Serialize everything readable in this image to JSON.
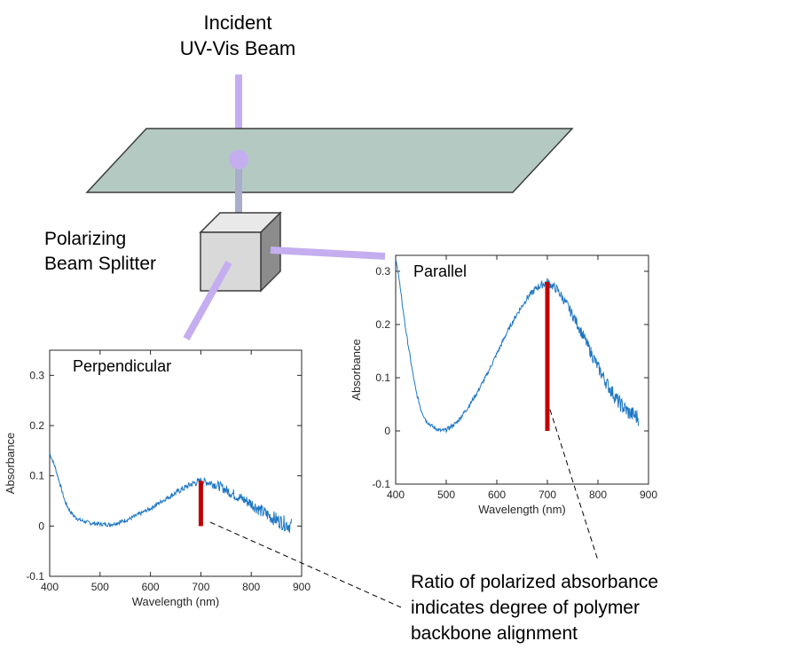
{
  "diagram": {
    "beam_label_line1": "Incident",
    "beam_label_line2": "UV-Vis Beam",
    "splitter_label_line1": "Polarizing",
    "splitter_label_line2": "Beam Splitter",
    "note_line1": "Ratio of polarized absorbance",
    "note_line2": "indicates degree of polymer",
    "note_line3": "backbone alignment",
    "colors": {
      "beam": "#c4aef0",
      "sample": "#b5c9c3",
      "cube_front": "#d9d9d9",
      "cube_top": "#e8e8e8",
      "cube_side": "#8c8c8c",
      "spectrum": "#1f77c4",
      "marker": "#c00000"
    }
  },
  "chart_data": [
    {
      "type": "line",
      "title": "Perpendicular",
      "xlabel": "Wavelength (nm)",
      "ylabel": "Absorbance",
      "xlim": [
        400,
        900
      ],
      "ylim": [
        -0.1,
        0.35
      ],
      "xticks": [
        "400",
        "500",
        "600",
        "700",
        "800",
        "900"
      ],
      "yticks": [
        "-0.1",
        "0",
        "0.1",
        "0.2",
        "0.3"
      ],
      "x": [
        400,
        410,
        420,
        430,
        440,
        450,
        460,
        480,
        500,
        520,
        540,
        560,
        580,
        600,
        620,
        640,
        660,
        680,
        700,
        720,
        740,
        760,
        780,
        800,
        820,
        840,
        860,
        880
      ],
      "y": [
        0.145,
        0.12,
        0.085,
        0.05,
        0.03,
        0.018,
        0.012,
        0.006,
        0.004,
        0.003,
        0.008,
        0.015,
        0.025,
        0.035,
        0.048,
        0.06,
        0.072,
        0.083,
        0.09,
        0.086,
        0.078,
        0.066,
        0.055,
        0.045,
        0.03,
        0.018,
        0.008,
        0.0
      ],
      "marker": {
        "x": 700,
        "y_from": 0.0,
        "y_to": 0.09
      },
      "grid": false
    },
    {
      "type": "line",
      "title": "Parallel",
      "xlabel": "Wavelength (nm)",
      "ylabel": "Absorbance",
      "xlim": [
        400,
        900
      ],
      "ylim": [
        -0.1,
        0.33
      ],
      "xticks": [
        "400",
        "500",
        "600",
        "700",
        "800",
        "900"
      ],
      "yticks": [
        "-0.1",
        "0",
        "0.1",
        "0.2",
        "0.3"
      ],
      "x": [
        400,
        405,
        410,
        420,
        430,
        440,
        450,
        460,
        470,
        480,
        490,
        500,
        520,
        540,
        560,
        580,
        600,
        620,
        640,
        660,
        680,
        700,
        720,
        740,
        760,
        780,
        800,
        820,
        840,
        860,
        880
      ],
      "y": [
        0.32,
        0.3,
        0.26,
        0.19,
        0.13,
        0.075,
        0.04,
        0.02,
        0.01,
        0.004,
        0.0,
        0.002,
        0.015,
        0.04,
        0.07,
        0.105,
        0.145,
        0.185,
        0.22,
        0.25,
        0.27,
        0.28,
        0.265,
        0.235,
        0.2,
        0.16,
        0.12,
        0.085,
        0.055,
        0.035,
        0.025
      ],
      "marker": {
        "x": 700,
        "y_from": 0.0,
        "y_to": 0.28
      },
      "grid": false
    }
  ]
}
